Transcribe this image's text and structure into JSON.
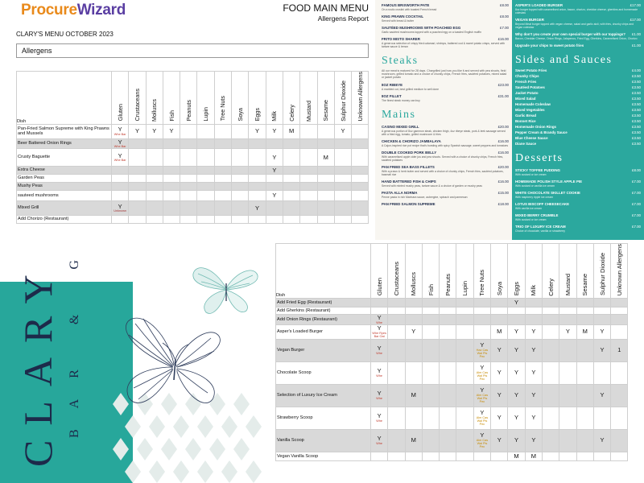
{
  "report": {
    "logo_part1": "Procure",
    "logo_part2": "Wizard",
    "title": "FOOD MAIN MENU",
    "subtitle": "Allergens Report",
    "menu_name": "CLARY'S MENU OCTOBER 2023",
    "filter_label": "Allergens"
  },
  "columns": {
    "dish": "Dish",
    "allergens": [
      "Gluten",
      "Crustaceans",
      "Molluscs",
      "Fish",
      "Peanuts",
      "Lupin",
      "Tree Nuts",
      "Soya",
      "Eggs",
      "Milk",
      "Celery",
      "Mustard",
      "Sesame",
      "Sulphur Dioxide",
      "Unknown Allergens"
    ]
  },
  "table1": [
    {
      "dish": "Pan-Fried Salmon Supreme with King Prawns and Mussels",
      "shade": false,
      "cells": [
        "Y",
        "Y",
        "Y",
        "Y",
        "",
        "",
        "",
        "",
        "Y",
        "Y",
        "M",
        "",
        "",
        "Y",
        ""
      ],
      "notes": {
        "0": "Whe Bar"
      }
    },
    {
      "dish": "Beer Battered Onion Rings",
      "shade": true,
      "cells": [
        "Y",
        "",
        "",
        "",
        "",
        "",
        "",
        "",
        "",
        "",
        "",
        "",
        "",
        "",
        ""
      ],
      "notes": {
        "0": "Whe Bar"
      }
    },
    {
      "dish": "Crusty Baguette",
      "shade": false,
      "cells": [
        "Y",
        "",
        "",
        "",
        "",
        "",
        "",
        "",
        "",
        "Y",
        "",
        "",
        "M",
        "",
        ""
      ],
      "notes": {
        "0": "Whe Bar"
      }
    },
    {
      "dish": "Extra Cheese",
      "shade": true,
      "cells": [
        "",
        "",
        "",
        "",
        "",
        "",
        "",
        "",
        "",
        "Y",
        "",
        "",
        "",
        "",
        ""
      ],
      "notes": {}
    },
    {
      "dish": "Garden Peas",
      "shade": false,
      "cells": [
        "",
        "",
        "",
        "",
        "",
        "",
        "",
        "",
        "",
        "",
        "",
        "",
        "",
        "",
        ""
      ],
      "notes": {}
    },
    {
      "dish": "Mushy Peas",
      "shade": true,
      "cells": [
        "",
        "",
        "",
        "",
        "",
        "",
        "",
        "",
        "",
        "",
        "",
        "",
        "",
        "",
        ""
      ],
      "notes": {}
    },
    {
      "dish": "sauteed mushrooms",
      "shade": false,
      "cells": [
        "",
        "",
        "",
        "",
        "",
        "",
        "",
        "",
        "",
        "Y",
        "",
        "",
        "",
        "",
        ""
      ],
      "notes": {}
    },
    {
      "dish": "Mixed Grill",
      "shade": true,
      "cells": [
        "Y",
        "",
        "",
        "",
        "",
        "",
        "",
        "",
        "Y",
        "",
        "",
        "",
        "",
        "",
        ""
      ],
      "notes": {
        "0": "Unknown"
      }
    },
    {
      "dish": "Add Chorizo (Restaurant)",
      "shade": false,
      "cells": [
        "",
        "",
        "",
        "",
        "",
        "",
        "",
        "",
        "",
        "",
        "",
        "",
        "",
        "",
        ""
      ],
      "notes": {}
    }
  ],
  "table2": [
    {
      "dish": "Add Fried Egg (Restaurant)",
      "shade": true,
      "cells": [
        "",
        "",
        "",
        "",
        "",
        "",
        "",
        "",
        "Y",
        "",
        "",
        "",
        "",
        "",
        ""
      ],
      "notes": {}
    },
    {
      "dish": "Add Gherkins (Restaurant)",
      "shade": false,
      "cells": [
        "",
        "",
        "",
        "",
        "",
        "",
        "",
        "",
        "",
        "",
        "",
        "",
        "",
        "",
        ""
      ],
      "notes": {}
    },
    {
      "dish": "Add Onion Rings (Restaurant)",
      "shade": true,
      "cells": [
        "Y",
        "",
        "",
        "",
        "",
        "",
        "",
        "",
        "",
        "",
        "",
        "",
        "",
        "",
        ""
      ],
      "notes": {
        "0": "Whe"
      }
    },
    {
      "dish": "Asper's Loaded Burger",
      "shade": false,
      "cells": [
        "Y",
        "",
        "Y",
        "",
        "",
        "",
        "",
        "M",
        "Y",
        "Y",
        "",
        "Y",
        "M",
        "Y",
        ""
      ],
      "notes": {
        "0": "Whe Ryes Bar Oat"
      }
    },
    {
      "dish": "Vegan Burger",
      "shade": true,
      "cells": [
        "Y",
        "",
        "",
        "",
        "",
        "",
        "Y",
        "Y",
        "Y",
        "Y",
        "",
        "",
        "",
        "Y",
        "1"
      ],
      "notes": {
        "0": "Whe",
        "6": "Haz Cas Wal Pis Pec"
      }
    },
    {
      "dish": "Chocolate Scoop",
      "shade": false,
      "cells": [
        "Y",
        "",
        "",
        "",
        "",
        "",
        "Y",
        "Y",
        "Y",
        "Y",
        "",
        "",
        "",
        "",
        ""
      ],
      "notes": {
        "0": "Whe",
        "6": "Alm Cas Wal Pis Pec"
      }
    },
    {
      "dish": "Selection of Luxury Ice Cream",
      "shade": true,
      "cells": [
        "Y",
        "",
        "M",
        "",
        "",
        "",
        "Y",
        "Y",
        "Y",
        "Y",
        "",
        "",
        "",
        "Y",
        ""
      ],
      "notes": {
        "0": "Whe",
        "6": "Alm Cas Wal Pis Pec"
      }
    },
    {
      "dish": "Strawberry Scoop",
      "shade": false,
      "cells": [
        "Y",
        "",
        "",
        "",
        "",
        "",
        "Y",
        "Y",
        "Y",
        "Y",
        "",
        "",
        "",
        "",
        ""
      ],
      "notes": {
        "0": "Whe",
        "6": "Alm Cas Wal Pis Pec"
      }
    },
    {
      "dish": "Vanilla Scoop",
      "shade": true,
      "cells": [
        "Y",
        "",
        "M",
        "",
        "",
        "",
        "Y",
        "Y",
        "Y",
        "Y",
        "",
        "",
        "",
        "Y",
        ""
      ],
      "notes": {
        "0": "Whe",
        "6": "Alm Cas Wal Pis Pec"
      }
    },
    {
      "dish": "Vegan Vanilla Scoop",
      "shade": false,
      "cells": [
        "",
        "",
        "",
        "",
        "",
        "",
        "",
        "",
        "M",
        "M",
        "",
        "",
        "",
        "",
        ""
      ],
      "notes": {}
    }
  ],
  "menu": {
    "top_items": [
      {
        "name": "FAMOUS BRIXWORTH PATE",
        "price": "£8.00",
        "desc": "On a rustic crostini with toasted French bread"
      },
      {
        "name": "KING PRAWN COCKTAIL",
        "price": "£8.00",
        "desc": "Served with bread & butter"
      },
      {
        "name": "SAUTÉED MUSHROOMS WITH POACHED EGG",
        "price": "£7.00",
        "desc": "Garlic sautéed mushrooms topped with a poached egg on a toasted English muffin"
      },
      {
        "name": "FRITO MISTO SHARER",
        "price": "£16.00",
        "desc": "A generous selection of crispy fried calamari, shrimps, battered cod & sweet potato crisps, served with tartare sauce & lemon"
      }
    ],
    "steaks_title": "Steaks",
    "steaks_note": "All our meat is matured for 28 days. Chargrilled just how you like it and served with pea shoots, field mushroom, grilled tomato and a choice of chunky chips, French fries, sautéed potatoes, mixed salad or jacket potato",
    "steaks": [
      {
        "name": "8OZ RIBEYE",
        "price": "£23.00",
        "desc": "A marbled cut, best grilled medium to well done"
      },
      {
        "name": "8OZ FILLET",
        "price": "£31.00",
        "desc": "The finest steak money can buy"
      }
    ],
    "mains_title": "Mains",
    "mains": [
      {
        "name": "CASINO MIXED GRILL",
        "price": "£20.00",
        "desc": "A generous portion of 8oz gammon steak, chicken thigh, 4oz ribeye steak, pork & leek sausage served with a fried egg, tomato, grilled mushroom & fries"
      },
      {
        "name": "CHICKEN & CHORIZO JAMBALAYA",
        "price": "£16.00",
        "desc": "A Cajun-inspired rice pot recipe that's bursting with spicy Spanish sausage, sweet peppers and tomatoes"
      },
      {
        "name": "DOUBLE COOKED PORK BELLY",
        "price": "£16.00",
        "desc": "With caramelised apple cider jus and pea shoots. Served with a choice of chunky chips, French fries, sautéed potatoes"
      },
      {
        "name": "PAN FRIED SEA BASS FILLETS",
        "price": "£20.00",
        "desc": "With a prawn & herb butter and served with a choice of chunky chips, French fries, sautéed potatoes, basmati rice"
      },
      {
        "name": "HAND BATTERED FISH & CHIPS",
        "price": "£16.00",
        "desc": "Served with minted mushy peas, tartare sauce & a choice of garden or mushy peas"
      },
      {
        "name": "PASTA ALLA NORMA",
        "price": "£15.00",
        "desc": "Penne pasta in rich Marinara sauce, aubergine, spinach and parmesan"
      },
      {
        "name": "PAN FRIED SALMON SUPREME",
        "price": "£18.00",
        "desc": ""
      }
    ],
    "right_top": [
      {
        "name": "ASPER'S LOADED BURGER",
        "price": "£17.00",
        "desc": "8oz burger topped with caramelised onion, bacon, chorizo, cheddar cheese, gherkins and homemade coleslaw"
      },
      {
        "name": "VEGAN BURGER",
        "price": "£17.00",
        "desc": "Beyond Meat burger topped with vegan cheese, salad and garlic aioli, with fries, chunky chips and vegan coleslaw"
      },
      {
        "name": "Why don't you create your own special burger with our toppings?",
        "price": "£1.00",
        "desc": "Bacon, Cheddar Cheese, Onion Rings, Jalapenos, Fried Egg, Gherkins, Caramelised Onion, Chorizo"
      },
      {
        "name": "Upgrade your chips to sweet potato fries",
        "price": "£1.00",
        "desc": ""
      }
    ],
    "sides_title": "Sides and Sauces",
    "sides": [
      {
        "name": "Sweet Potato Fries",
        "price": "£4.00"
      },
      {
        "name": "Chunky Chips",
        "price": "£3.50"
      },
      {
        "name": "French Fries",
        "price": "£3.50"
      },
      {
        "name": "Sautéed Potatoes",
        "price": "£3.50"
      },
      {
        "name": "Jacket Potato",
        "price": "£3.50"
      },
      {
        "name": "Mixed Salad",
        "price": "£3.50"
      },
      {
        "name": "Homemade Coleslaw",
        "price": "£3.50"
      },
      {
        "name": "Mixed Vegetables",
        "price": "£3.50"
      },
      {
        "name": "Garlic Bread",
        "price": "£3.50"
      },
      {
        "name": "Bonnet Rice",
        "price": "£3.50"
      },
      {
        "name": "Homemade Onion Rings",
        "price": "£3.50"
      },
      {
        "name": "Pepper Cream & Brandy Sauce",
        "price": "£3.50"
      },
      {
        "name": "Blue Cheese Sauce",
        "price": "£3.50"
      },
      {
        "name": "Diane Sauce",
        "price": "£3.50"
      }
    ],
    "desserts_title": "Desserts",
    "desserts": [
      {
        "name": "STICKY TOFFEE PUDDING",
        "price": "£8.00",
        "desc": "With custard or ice cream"
      },
      {
        "name": "HOMEMADE POLISH STYLE APPLE PIE",
        "price": "£7.00",
        "desc": "With custard or vanilla ice cream"
      },
      {
        "name": "WHITE CHOCOLATE SKILLET COOKIE",
        "price": "£7.00",
        "desc": "With raspberry ripple ice cream"
      },
      {
        "name": "LOTUS BISCOFF CHEESECAKE",
        "price": "£7.00",
        "desc": "With vanilla ice cream"
      },
      {
        "name": "MIXED BERRY CRUMBLE",
        "price": "£7.00",
        "desc": "With custard or ice cream"
      },
      {
        "name": "TRIO OF LUXURY ICE CREAM",
        "price": "£7.00",
        "desc": "Choice of chocolate, vanilla or strawberry"
      }
    ]
  },
  "brand": {
    "name": "CLARY",
    "tagline": "BAR & GRI"
  },
  "colors": {
    "teal": "#27a79b",
    "navy": "#1d2a4a",
    "shade": "#d9d9d9"
  }
}
